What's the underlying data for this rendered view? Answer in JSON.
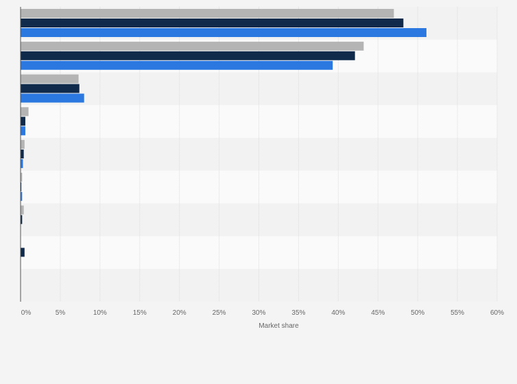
{
  "chart_data": {
    "type": "bar",
    "orientation": "horizontal",
    "title": "",
    "xlabel": "Market share",
    "ylabel": "",
    "xlim": [
      0,
      60
    ],
    "x_ticks": [
      "0%",
      "5%",
      "10%",
      "15%",
      "20%",
      "25%",
      "30%",
      "35%",
      "40%",
      "45%",
      "50%",
      "55%",
      "60%"
    ],
    "tick_values": [
      0,
      5,
      10,
      15,
      20,
      25,
      30,
      35,
      40,
      45,
      50,
      55,
      60
    ],
    "value_unit": "%",
    "grid": true,
    "categories": [
      "",
      "",
      "",
      "",
      "",
      "",
      "",
      "",
      ""
    ],
    "series": [
      {
        "name": "",
        "color": "#b4b4b4",
        "values": [
          47,
          43.2,
          7.3,
          1,
          0.5,
          0.2,
          0.4,
          null,
          null
        ]
      },
      {
        "name": "",
        "color": "#0f2a4a",
        "values": [
          48.2,
          42.1,
          7.4,
          0.6,
          0.4,
          0.1,
          0.2,
          0.5,
          null
        ]
      },
      {
        "name": "",
        "color": "#2a78e0",
        "values": [
          51.1,
          39.3,
          8,
          0.6,
          0.3,
          0.2,
          null,
          null,
          null
        ]
      }
    ]
  }
}
